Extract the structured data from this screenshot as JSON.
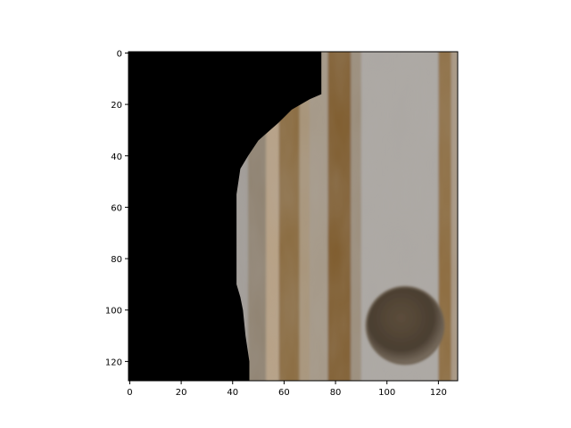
{
  "chart_data": {
    "type": "heatmap",
    "description_kind": "image-plot",
    "title": "",
    "xlabel": "",
    "ylabel": "",
    "image_size": [
      128,
      128
    ],
    "xlim": [
      -0.5,
      127.5
    ],
    "ylim": [
      127.5,
      -0.5
    ],
    "y_axis_inverted": true,
    "x_ticks": [
      0,
      20,
      40,
      60,
      80,
      100,
      120
    ],
    "x_tick_labels": [
      "0",
      "20",
      "40",
      "60",
      "80",
      "100",
      "120"
    ],
    "y_ticks": [
      0,
      20,
      40,
      60,
      80,
      100,
      120
    ],
    "y_tick_labels": [
      "0",
      "20",
      "40",
      "60",
      "80",
      "100",
      "120"
    ],
    "grid": false,
    "mask_boundary": [
      [
        74.5,
        -0.5
      ],
      [
        74.5,
        16
      ],
      [
        70,
        18
      ],
      [
        63,
        22
      ],
      [
        58,
        27
      ],
      [
        50,
        34
      ],
      [
        46,
        40
      ],
      [
        43,
        45
      ],
      [
        41.5,
        55
      ],
      [
        41.5,
        80
      ],
      [
        41.5,
        90
      ],
      [
        43,
        95
      ],
      [
        44,
        100
      ],
      [
        45,
        110
      ],
      [
        46.5,
        120
      ],
      [
        46.5,
        127.5
      ]
    ],
    "mask_color": "#000000",
    "surface_color": "#a29d98",
    "vertical_bands": [
      {
        "x_start": 46,
        "x_end": 53,
        "color": "#8f8270"
      },
      {
        "x_start": 53,
        "x_end": 58,
        "color": "#b8a184"
      },
      {
        "x_start": 58,
        "x_end": 66,
        "color": "#8a6a3e"
      },
      {
        "x_start": 66,
        "x_end": 70,
        "color": "#a89478"
      },
      {
        "x_start": 70,
        "x_end": 77,
        "color": "#a59886"
      },
      {
        "x_start": 77,
        "x_end": 86,
        "color": "#7e5a2c"
      },
      {
        "x_start": 86,
        "x_end": 90,
        "color": "#9b8d7a"
      },
      {
        "x_start": 90,
        "x_end": 120,
        "color": "#aca8a3"
      },
      {
        "x_start": 120,
        "x_end": 125,
        "color": "#8c6a3a"
      },
      {
        "x_start": 125,
        "x_end": 127.5,
        "color": "#a89680"
      }
    ],
    "knot": {
      "cx": 107,
      "cy": 106,
      "rx": 15,
      "ry": 15,
      "color": "#4f4335",
      "rim_color": "#6e6253"
    }
  }
}
